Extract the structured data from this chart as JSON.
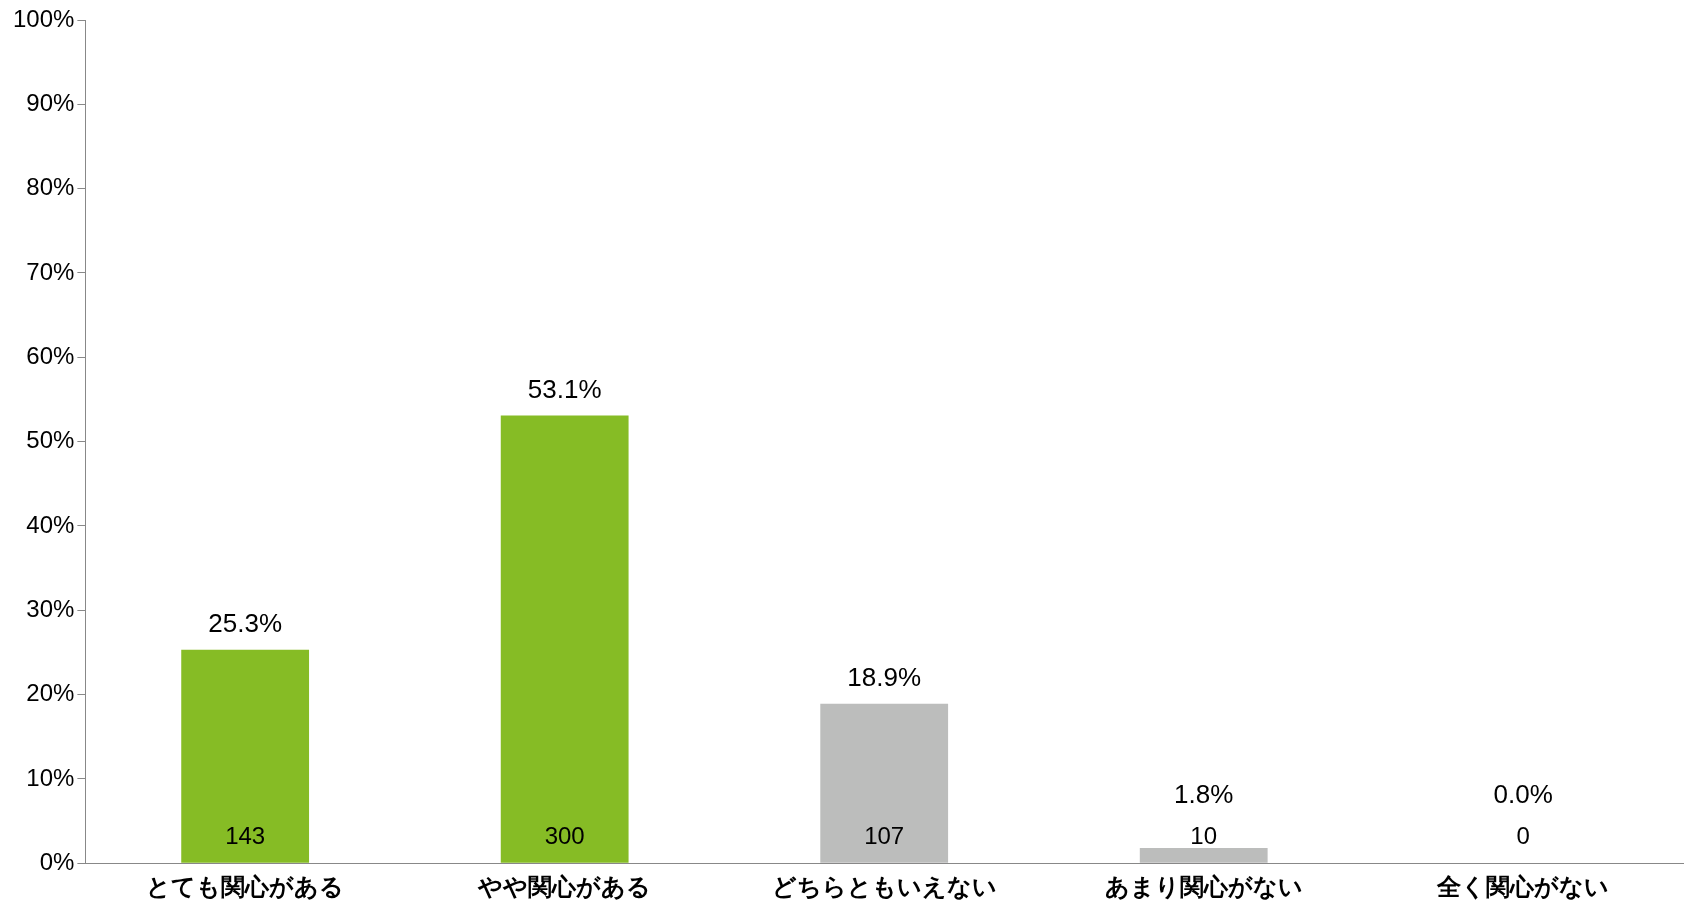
{
  "chart_data": {
    "type": "bar",
    "categories": [
      "とても関心がある",
      "やや関心がある",
      "どちらともいえない",
      "あまり関心がない",
      "全く関心がない"
    ],
    "values": [
      25.3,
      53.1,
      18.9,
      1.8,
      0.0
    ],
    "colors": [
      "#86bc25",
      "#86bc25",
      "#bcbdbc",
      "#bcbdbc",
      "#bcbdbc"
    ],
    "value_labels": [
      "25.3%",
      "53.1%",
      "18.9%",
      "1.8%",
      "0.0%"
    ],
    "annotations": [
      "143",
      "300",
      "107",
      "10",
      "0"
    ],
    "ylim": [
      0,
      100
    ],
    "yticks": [
      {
        "value": 0,
        "label": "0%"
      },
      {
        "value": 10,
        "label": "10%"
      },
      {
        "value": 20,
        "label": "20%"
      },
      {
        "value": 30,
        "label": "30%"
      },
      {
        "value": 40,
        "label": "40%"
      },
      {
        "value": 50,
        "label": "50%"
      },
      {
        "value": 60,
        "label": "60%"
      },
      {
        "value": 70,
        "label": "70%"
      },
      {
        "value": 80,
        "label": "80%"
      },
      {
        "value": 90,
        "label": "90%"
      },
      {
        "value": 100,
        "label": "100%"
      }
    ],
    "grid": false,
    "legend": false
  }
}
